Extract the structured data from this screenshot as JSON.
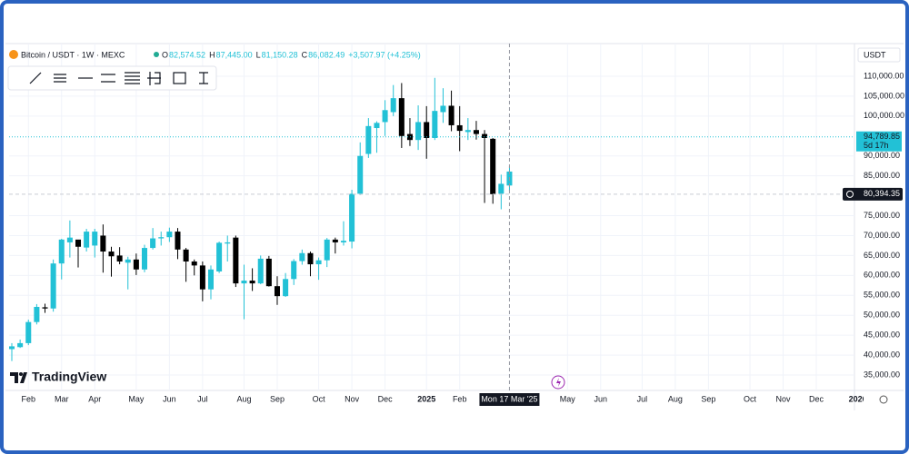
{
  "chart_data": {
    "type": "candlestick",
    "title": "Bitcoin / USDT · 1W · MEXC",
    "legend_values": [
      {
        "key": "O",
        "text": "82,574.52"
      },
      {
        "key": "H",
        "text": "87,445.00"
      },
      {
        "key": "L",
        "text": "81,150.28"
      },
      {
        "key": "C",
        "text": "86,082.49"
      }
    ],
    "change": "+3,507.97 (+4.25%)",
    "currency": "USDT",
    "brand": "TradingView",
    "crosshair_label": "Mon 17 Mar '25",
    "up_color": "#22c1d6",
    "down_color": "#000000",
    "grid": true,
    "categories": [
      null,
      null,
      null,
      null,
      null,
      null,
      null,
      null,
      null,
      null,
      null,
      null,
      null,
      null,
      null,
      null,
      null,
      null,
      null,
      null,
      null,
      null,
      null,
      null,
      null,
      null,
      null,
      null,
      null,
      null,
      null,
      null,
      null,
      null,
      null,
      null,
      null,
      null,
      null,
      null,
      null,
      null,
      null,
      null,
      null,
      null,
      null,
      null,
      null,
      null,
      null,
      null,
      null,
      null,
      null,
      null,
      null,
      null,
      null,
      null,
      null
    ],
    "series": [
      {
        "name": "Bitcoin / USDT",
        "open": [
          41500,
          42000,
          43000,
          48300,
          52000,
          51700,
          63000,
          68300,
          69000,
          67000,
          67500,
          70000,
          66000,
          65000,
          63200,
          64000,
          61500,
          66900,
          69300,
          69600,
          71000,
          66500,
          63500,
          62500,
          56500,
          61000,
          68000,
          69500,
          58000,
          58700,
          58000,
          64200,
          57300,
          54800,
          59100,
          63600,
          65600,
          62800,
          63800,
          69000,
          68300,
          68500,
          80500,
          90500,
          97000,
          98500,
          101000,
          104500,
          95500,
          94000,
          98500,
          94500,
          101000,
          102600,
          97700,
          96000,
          96500,
          95500,
          94300,
          80500,
          82574.52
        ],
        "high": [
          43000,
          43900,
          48900,
          52800,
          52900,
          64000,
          69200,
          73800,
          68900,
          71700,
          71700,
          72800,
          67200,
          67100,
          64700,
          65500,
          67700,
          71900,
          71000,
          72000,
          71900,
          66900,
          64000,
          63500,
          62500,
          68500,
          70000,
          70000,
          62700,
          61800,
          65000,
          64900,
          59800,
          60600,
          64100,
          66500,
          66000,
          64500,
          69400,
          69500,
          73600,
          81500,
          93400,
          99500,
          98700,
          104000,
          107800,
          108300,
          99500,
          102700,
          102500,
          109600,
          107000,
          106400,
          102500,
          99500,
          98800,
          96500,
          94500,
          85300,
          87445
        ],
        "low": [
          38500,
          41800,
          42500,
          47700,
          50600,
          50900,
          59000,
          64500,
          62000,
          66000,
          64500,
          60700,
          59700,
          62800,
          56500,
          60100,
          60800,
          66500,
          67500,
          68400,
          64100,
          58400,
          60000,
          53500,
          54000,
          60600,
          63500,
          57100,
          49000,
          56100,
          57800,
          57200,
          52600,
          54600,
          57600,
          62700,
          59800,
          58900,
          62100,
          65500,
          67500,
          66800,
          80200,
          89500,
          90800,
          95000,
          100000,
          92000,
          92500,
          91500,
          89300,
          94000,
          98300,
          96200,
          91200,
          94000,
          94100,
          78200,
          78000,
          76600,
          81150.28
        ],
        "close": [
          42200,
          43000,
          48300,
          52100,
          51700,
          63000,
          69000,
          69500,
          67200,
          71000,
          71000,
          66000,
          64800,
          63500,
          64000,
          61500,
          66900,
          69300,
          69600,
          71000,
          66500,
          63500,
          62500,
          56500,
          61500,
          68200,
          68300,
          58000,
          58700,
          58000,
          64200,
          57300,
          54800,
          59100,
          63600,
          65600,
          62800,
          63800,
          69000,
          68300,
          68700,
          80500,
          90000,
          97500,
          98300,
          101500,
          104500,
          95000,
          94000,
          98500,
          94500,
          101300,
          102600,
          97700,
          96300,
          96500,
          95500,
          94500,
          80400,
          83000,
          86082.49
        ]
      }
    ],
    "xticks": [
      {
        "value": 2,
        "label": "Feb"
      },
      {
        "value": 6,
        "label": "Mar"
      },
      {
        "value": 10,
        "label": "Apr"
      },
      {
        "value": 15,
        "label": "May"
      },
      {
        "value": 19,
        "label": "Jun"
      },
      {
        "value": 23,
        "label": "Jul"
      },
      {
        "value": 28,
        "label": "Aug"
      },
      {
        "value": 32,
        "label": "Sep"
      },
      {
        "value": 37,
        "label": "Oct"
      },
      {
        "value": 41,
        "label": "Nov"
      },
      {
        "value": 45,
        "label": "Dec"
      },
      {
        "value": 50,
        "label": "2025"
      },
      {
        "value": 54,
        "label": "Feb"
      },
      {
        "value": 67,
        "label": "May"
      },
      {
        "value": 71,
        "label": "Jun"
      },
      {
        "value": 76,
        "label": "Jul"
      },
      {
        "value": 80,
        "label": "Aug"
      },
      {
        "value": 84,
        "label": "Sep"
      },
      {
        "value": 89,
        "label": "Oct"
      },
      {
        "value": 93,
        "label": "Nov"
      },
      {
        "value": 97,
        "label": "Dec"
      },
      {
        "value": 102,
        "label": "2026"
      }
    ],
    "xlim": [
      -0.33,
      101.6
    ],
    "ylim": [
      31125,
      118207
    ],
    "yticks": [
      {
        "value": 110000,
        "label": "110,000.00"
      },
      {
        "value": 105000,
        "label": "105,000.00"
      },
      {
        "value": 100000,
        "label": "100,000.00"
      },
      {
        "value": 90000,
        "label": "90,000.00"
      },
      {
        "value": 85000,
        "label": "85,000.00"
      },
      {
        "value": 75000,
        "label": "75,000.00"
      },
      {
        "value": 70000,
        "label": "70,000.00"
      },
      {
        "value": 65000,
        "label": "65,000.00"
      },
      {
        "value": 60000,
        "label": "60,000.00"
      },
      {
        "value": 55000,
        "label": "55,000.00"
      },
      {
        "value": 50000,
        "label": "50,000.00"
      },
      {
        "value": 45000,
        "label": "45,000.00"
      },
      {
        "value": 40000,
        "label": "40,000.00"
      },
      {
        "value": 35000,
        "label": "35,000.00"
      }
    ],
    "price_lines": [
      {
        "value": 94789.85,
        "label": "94,789.85",
        "sub": "5d 17h",
        "color": "#22c1d6"
      },
      {
        "value": 80394.35,
        "label": "80,394.35",
        "color": "#131722"
      }
    ]
  }
}
